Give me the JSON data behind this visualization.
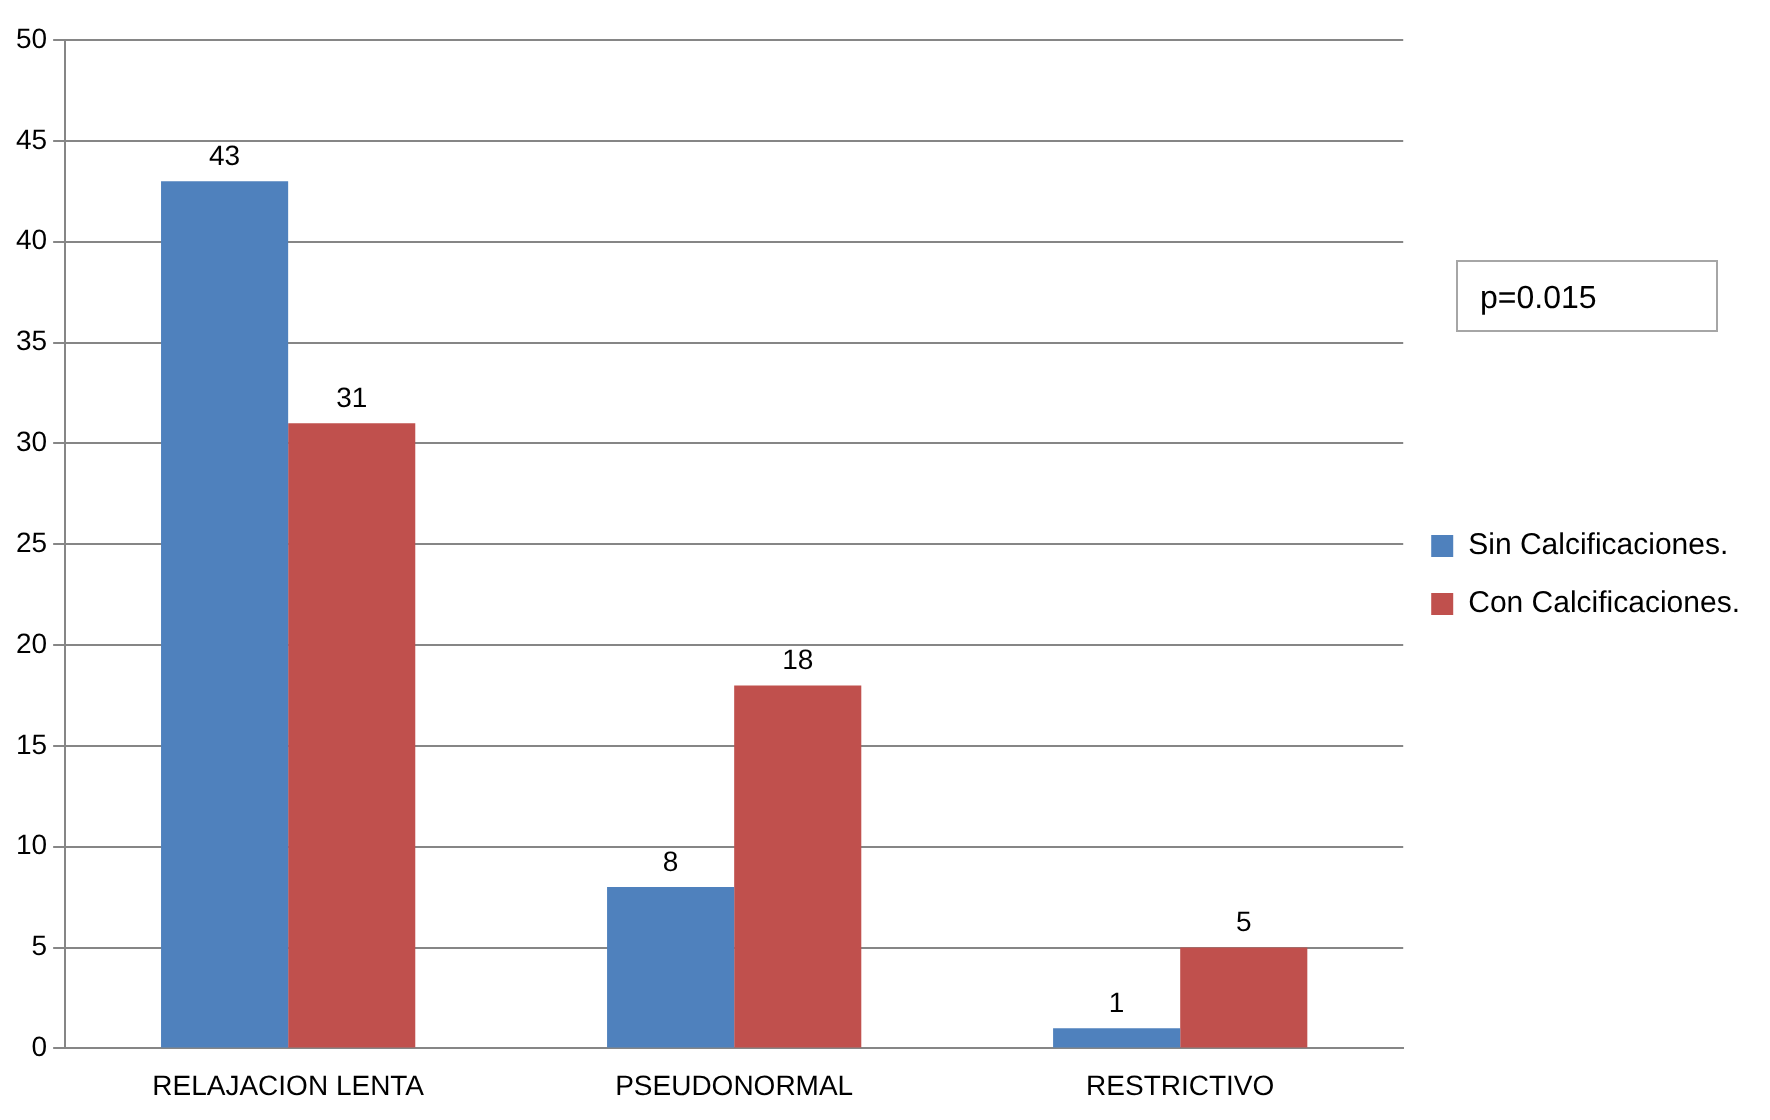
{
  "chart_data": {
    "type": "bar",
    "categories": [
      "RELAJACION LENTA",
      "PSEUDONORMAL",
      "RESTRICTIVO"
    ],
    "series": [
      {
        "name": "Sin Calcificaciones.",
        "color": "#4f81bd",
        "values": [
          43,
          8,
          1
        ]
      },
      {
        "name": "Con Calcificaciones.",
        "color": "#c0504d",
        "values": [
          31,
          18,
          5
        ]
      }
    ],
    "ylim": [
      0,
      50
    ],
    "yticks": [
      0,
      5,
      10,
      15,
      20,
      25,
      30,
      35,
      40,
      45,
      50
    ],
    "grid": "y",
    "legend": "right",
    "data_labels": true,
    "annotations": [
      "p=0.015"
    ]
  }
}
